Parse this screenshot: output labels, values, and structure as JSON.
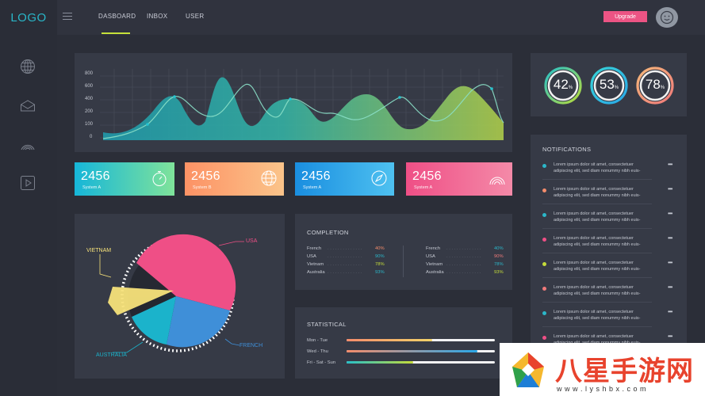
{
  "app": {
    "logo": "LOGO"
  },
  "nav": {
    "tabs": [
      "DASBOARD",
      "INBOX",
      "USER"
    ],
    "active": "DASBOARD",
    "upgrade_label": "Upgrade"
  },
  "sidebar": {
    "icons": [
      "globe-icon",
      "inbox-icon",
      "signal-icon",
      "play-icon"
    ]
  },
  "main_chart": {
    "y_ticks": [
      "800",
      "600",
      "400",
      "200",
      "100",
      "0"
    ]
  },
  "stat_cards": [
    {
      "value": "2456",
      "label": "System A",
      "icon": "stopwatch-icon",
      "gradient": [
        "#16b6d9",
        "#7fe39a"
      ]
    },
    {
      "value": "2456",
      "label": "System B",
      "icon": "globe-icon",
      "gradient": [
        "#fc9265",
        "#fbc48a"
      ]
    },
    {
      "value": "2456",
      "label": "System A",
      "icon": "compass-icon",
      "gradient": [
        "#1a8ee0",
        "#4ec1f0"
      ]
    },
    {
      "value": "2456",
      "label": "System A",
      "icon": "signal-icon",
      "gradient": [
        "#ef4f86",
        "#f48aa8"
      ]
    }
  ],
  "gauges": [
    {
      "value": "42",
      "unit": "%",
      "color": "#b9dc3a",
      "color2": "#28c0c8"
    },
    {
      "value": "53",
      "unit": "%",
      "color": "#2aa8e8",
      "color2": "#37d3d8"
    },
    {
      "value": "78",
      "unit": "%",
      "color": "#f07a7a",
      "color2": "#f4b77a"
    }
  ],
  "pie": {
    "labels": {
      "usa": "USA",
      "vietnam": "VIETNAM",
      "french": "FRENCH",
      "australia": "AUSTRALIA"
    }
  },
  "completion": {
    "title": "COMPLETION",
    "left": [
      {
        "label": "French",
        "value": "40%",
        "color": "#f48c6b"
      },
      {
        "label": "USA",
        "value": "90%",
        "color": "#2bb7c9"
      },
      {
        "label": "Vietnam",
        "value": "78%",
        "color": "#c4dc3a"
      },
      {
        "label": "Australia",
        "value": "93%",
        "color": "#2bb7c9"
      }
    ],
    "right": [
      {
        "label": "French",
        "value": "40%",
        "color": "#2bb7c9"
      },
      {
        "label": "USA",
        "value": "90%",
        "color": "#f07a7a"
      },
      {
        "label": "Vietnam",
        "value": "78%",
        "color": "#2bb7c9"
      },
      {
        "label": "Australia",
        "value": "93%",
        "color": "#c4dc3a"
      }
    ]
  },
  "statistical": {
    "title": "STATISTICAL",
    "rows": [
      {
        "label": "Mon - Tue",
        "value": 0.58,
        "colors": [
          "#f48c6b",
          "#f2d36a"
        ]
      },
      {
        "label": "Wed - Thu",
        "value": 0.88,
        "colors": [
          "#f48c6b",
          "#2aa8e8"
        ]
      },
      {
        "label": "Fri - Sat - Sun",
        "value": 0.45,
        "colors": [
          "#28c0c8",
          "#c4dc3a"
        ]
      }
    ]
  },
  "notifications": {
    "title": "NOTIFICATIONS",
    "items": [
      {
        "text": "Lorem ipsum dolor sit amet, consectetuer adipiscing elit, sed diam nonummy nibh euis-",
        "color": "#2bb7c9"
      },
      {
        "text": "Lorem ipsum dolor sit amet, consectetuer adipiscing elit, sed diam nonummy nibh euis-",
        "color": "#f48c6b"
      },
      {
        "text": "Lorem ipsum dolor sit amet, consectetuer adipiscing elit, sed diam nonummy nibh euis-",
        "color": "#2bb7c9"
      },
      {
        "text": "Lorem ipsum dolor sit amet, consectetuer adipiscing elit, sed diam nonummy nibh euis-",
        "color": "#ef4f86"
      },
      {
        "text": "Lorem ipsum dolor sit amet, consectetuer adipiscing elit, sed diam nonummy nibh euis-",
        "color": "#c4dc3a"
      },
      {
        "text": "Lorem ipsum dolor sit amet, consectetuer adipiscing elit, sed diam nonummy nibh euis-",
        "color": "#f07a7a"
      },
      {
        "text": "Lorem ipsum dolor sit amet, consectetuer adipiscing elit, sed diam nonummy nibh euis-",
        "color": "#2bb7c9"
      },
      {
        "text": "Lorem ipsum dolor sit amet, consectetuer adipiscing elit, sed diam nonummy nibh euis-",
        "color": "#ef4f86"
      }
    ],
    "more_label": "•••"
  },
  "watermark": {
    "brand": "八星手游网",
    "url": "w w w . l y s h b x . c o m"
  }
}
